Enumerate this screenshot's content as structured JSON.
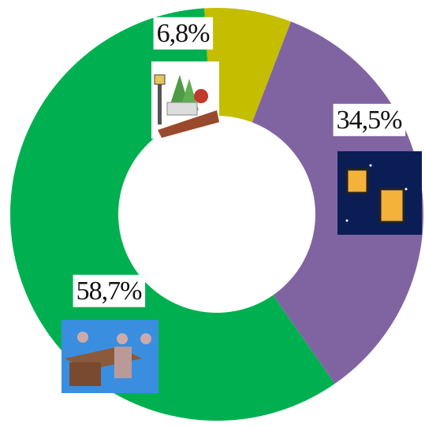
{
  "chart_data": {
    "type": "donut",
    "categories": [
      null,
      null,
      null
    ],
    "series": [
      {
        "values": [
          34.5,
          58.7,
          6.8
        ],
        "value_labels": [
          "34,5%",
          "58,7%",
          "6,8%"
        ],
        "colors": [
          "#8064a2",
          "#00b050",
          "#c4bd00"
        ]
      }
    ]
  }
}
